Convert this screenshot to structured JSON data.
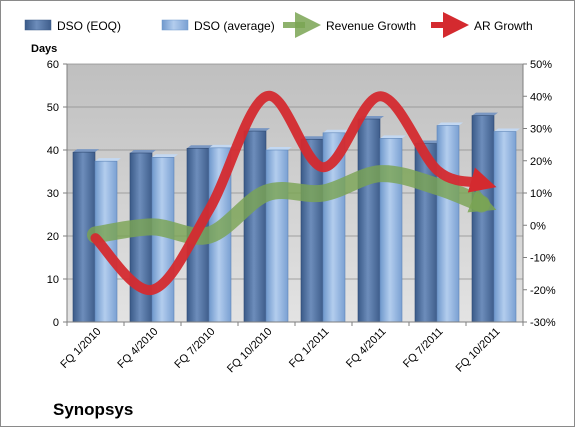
{
  "chart_data": {
    "type": "bar",
    "company": "Synopsys",
    "ylabel": "Days",
    "ylim": [
      0,
      60
    ],
    "y_ticks": [
      "0",
      "10",
      "20",
      "30",
      "40",
      "50",
      "60"
    ],
    "y2lim": [
      -30,
      50
    ],
    "y2_ticks": [
      "-30%",
      "-20%",
      "-10%",
      "0%",
      "10%",
      "20%",
      "30%",
      "40%",
      "50%"
    ],
    "categories": [
      "FQ 1/2010",
      "FQ 4/2010",
      "FQ 7/2010",
      "FQ 10/2010",
      "FQ 1/2011",
      "FQ 4/2011",
      "FQ 7/2011",
      "FQ 10/2011"
    ],
    "legend_position": "top",
    "grid": true,
    "series": [
      {
        "name": "DSO (EOQ)",
        "kind": "bar",
        "axis": "left",
        "color": "#4f6f9f",
        "values": [
          39.5,
          39.3,
          40.4,
          44.4,
          42.5,
          47.2,
          41.5,
          48.0
        ]
      },
      {
        "name": "DSO (average)",
        "kind": "bar",
        "axis": "left",
        "color": "#8db3e2",
        "values": [
          37.4,
          38.3,
          40.5,
          40.0,
          44.0,
          42.7,
          45.7,
          44.3
        ]
      },
      {
        "name": "Revenue Growth",
        "kind": "line",
        "axis": "right",
        "color": "#7aa454",
        "values": [
          -3,
          -0.5,
          -3,
          10,
          10,
          16,
          12,
          5
        ]
      },
      {
        "name": "AR Growth",
        "kind": "line",
        "axis": "right",
        "color": "#d42a2f",
        "values": [
          -4,
          -20,
          5,
          40,
          18,
          40,
          17,
          12
        ]
      }
    ]
  }
}
